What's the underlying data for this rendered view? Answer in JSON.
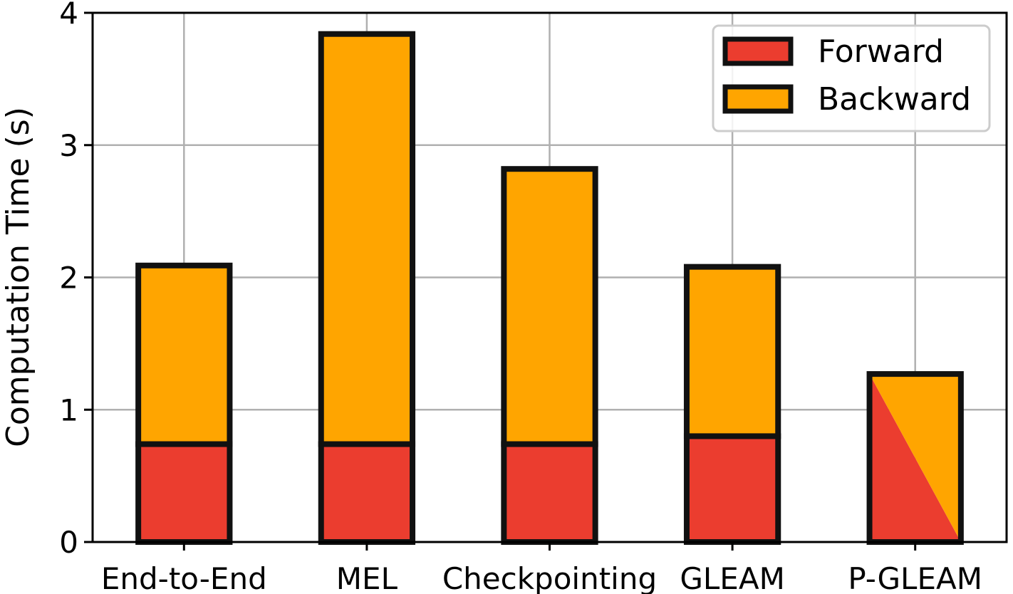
{
  "chart_data": {
    "type": "bar",
    "stacked": true,
    "categories": [
      "End-to-End",
      "MEL",
      "Checkpointing",
      "GLEAM",
      "P-GLEAM"
    ],
    "series": [
      {
        "name": "Forward",
        "color": "#EB3D2F",
        "values": [
          0.74,
          0.74,
          0.74,
          0.8,
          null
        ]
      },
      {
        "name": "Backward",
        "color": "#FFA500",
        "values": [
          1.35,
          3.1,
          2.08,
          1.28,
          null
        ]
      }
    ],
    "overlapped": {
      "category": "P-GLEAM",
      "total": 1.27,
      "note": "Forward and Backward overlapped; bar split diagonally"
    },
    "ylabel": "Computation Time (s)",
    "xlabel": "",
    "title": "",
    "ylim": [
      0,
      4
    ],
    "yticks": [
      "0",
      "1",
      "2",
      "3",
      "4"
    ],
    "grid": true,
    "legend_position": "top-right"
  }
}
